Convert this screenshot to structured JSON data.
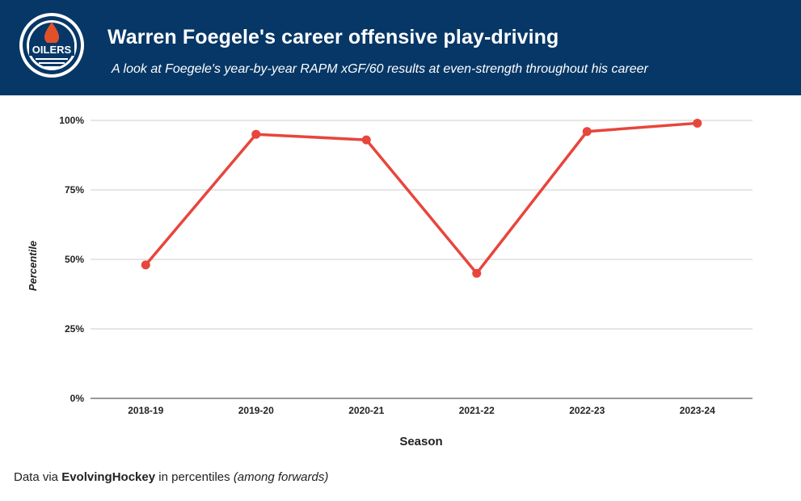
{
  "header": {
    "title": "Warren Foegele's career offensive play-driving",
    "subtitle": "A look at Foegele's year-by-year RAPM xGF/60 results at even-strength throughout his career",
    "logo_text": "OILERS",
    "colors": {
      "background": "#063766",
      "accent": "#e0512a"
    }
  },
  "footer": {
    "prefix": "Data via ",
    "source_name": "EvolvingHockey",
    "middle": " in percentiles ",
    "note": "(among forwards)"
  },
  "chart_data": {
    "type": "line",
    "title": "Warren Foegele's career offensive play-driving",
    "subtitle": "A look at Foegele's year-by-year RAPM xGF/60 results at even-strength throughout his career",
    "xlabel": "Season",
    "ylabel": "Percentile",
    "categories": [
      "2018-19",
      "2019-20",
      "2020-21",
      "2021-22",
      "2022-23",
      "2023-24"
    ],
    "series": [
      {
        "values": [
          48,
          95,
          93,
          45,
          96,
          99
        ],
        "color": "#e8453c"
      }
    ],
    "ylim": [
      0,
      100
    ],
    "yticks": [
      0,
      25,
      50,
      75,
      100
    ],
    "ytick_labels": [
      "0%",
      "25%",
      "50%",
      "75%",
      "100%"
    ],
    "grid": true,
    "legend": "none"
  }
}
